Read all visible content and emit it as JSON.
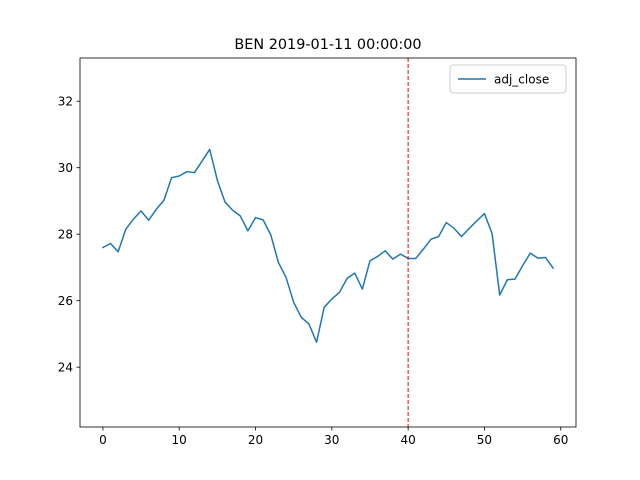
{
  "chart_data": {
    "type": "line",
    "title": "BEN 2019-01-11 00:00:00",
    "xlabel": "",
    "ylabel": "",
    "xlim": [
      -3,
      62
    ],
    "ylim": [
      22.2,
      33.3
    ],
    "xticks": [
      0,
      10,
      20,
      30,
      40,
      50,
      60
    ],
    "yticks": [
      24,
      26,
      28,
      30,
      32
    ],
    "grid": false,
    "legend": {
      "position": "upper right"
    },
    "series": [
      {
        "name": "adj_close",
        "color": "#1f77b4",
        "x": [
          0,
          1,
          2,
          3,
          4,
          5,
          6,
          7,
          8,
          9,
          10,
          11,
          12,
          13,
          14,
          15,
          16,
          17,
          18,
          19,
          20,
          21,
          22,
          23,
          24,
          25,
          26,
          27,
          28,
          29,
          30,
          31,
          32,
          33,
          34,
          35,
          36,
          37,
          38,
          39,
          40,
          41,
          42,
          43,
          44,
          45,
          46,
          47,
          48,
          49,
          50,
          51,
          52,
          53,
          54,
          55,
          56,
          57,
          58,
          59
        ],
        "values": [
          27.6,
          27.72,
          27.47,
          28.15,
          28.45,
          28.7,
          28.42,
          28.75,
          29.02,
          29.7,
          29.75,
          29.88,
          29.85,
          30.2,
          30.55,
          29.62,
          28.97,
          28.72,
          28.55,
          28.1,
          28.5,
          28.43,
          27.98,
          27.15,
          26.7,
          25.95,
          25.5,
          25.3,
          24.75,
          25.8,
          26.05,
          26.25,
          26.67,
          26.83,
          26.35,
          27.2,
          27.33,
          27.5,
          27.25,
          27.4,
          27.27,
          27.27,
          27.55,
          27.85,
          27.93,
          28.35,
          28.18,
          27.93,
          28.17,
          28.4,
          28.62,
          28.02,
          26.17,
          26.63,
          26.65,
          27.05,
          27.43,
          27.28,
          27.3,
          26.98
        ]
      }
    ],
    "vline": {
      "x": 40,
      "color": "#ff0000",
      "style": "dashed"
    }
  }
}
